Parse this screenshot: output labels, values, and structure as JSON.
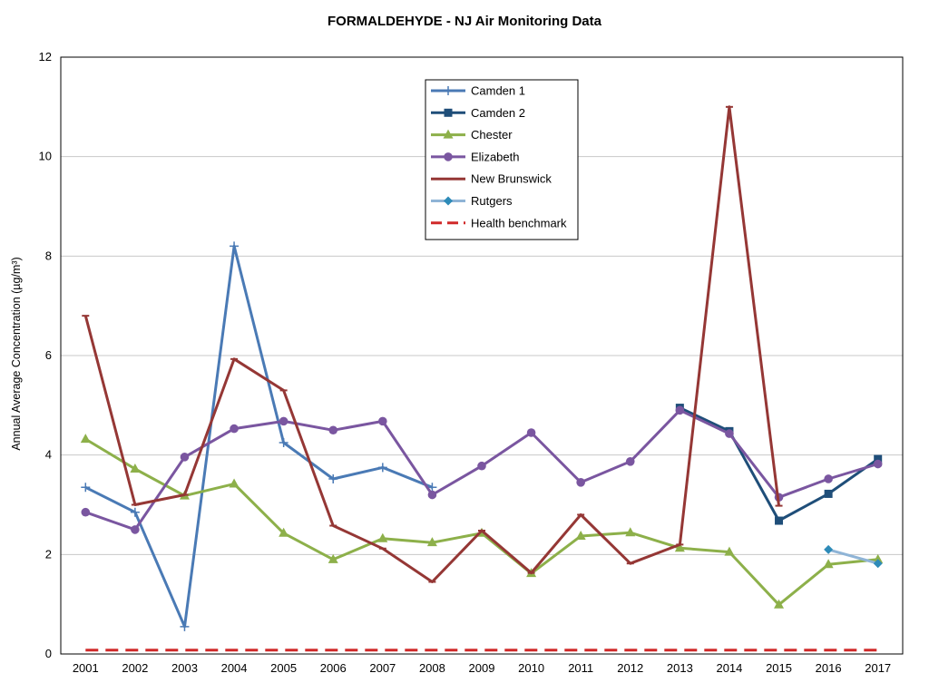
{
  "chart_data": {
    "type": "line",
    "title": "FORMALDEHYDE - NJ Air Monitoring Data",
    "xlabel": "",
    "ylabel": "Annual Average Concentration (µg/m³)",
    "ylim": [
      0,
      12
    ],
    "yticks": [
      0,
      2,
      4,
      6,
      8,
      10,
      12
    ],
    "categories": [
      "2001",
      "2002",
      "2003",
      "2004",
      "2005",
      "2006",
      "2007",
      "2008",
      "2009",
      "2010",
      "2011",
      "2012",
      "2013",
      "2014",
      "2015",
      "2016",
      "2017"
    ],
    "grid": true,
    "legend_position": "top-center",
    "series": [
      {
        "name": "Camden 1",
        "color": "#4a7ab5",
        "marker": "plus",
        "dash": false,
        "values": [
          3.35,
          2.85,
          0.55,
          8.2,
          4.25,
          3.52,
          3.75,
          3.35,
          null,
          null,
          null,
          null,
          null,
          null,
          null,
          null,
          null
        ]
      },
      {
        "name": "Camden 2",
        "color": "#1f4e79",
        "marker": "square",
        "dash": false,
        "values": [
          null,
          null,
          null,
          null,
          null,
          null,
          null,
          null,
          null,
          null,
          null,
          null,
          4.95,
          4.48,
          2.68,
          3.22,
          3.92
        ]
      },
      {
        "name": "Chester",
        "color": "#8db04a",
        "marker": "triangle",
        "dash": false,
        "values": [
          4.32,
          3.72,
          3.18,
          3.42,
          2.43,
          1.9,
          2.32,
          2.24,
          2.43,
          1.62,
          2.37,
          2.44,
          2.13,
          2.05,
          0.99,
          1.8,
          1.9
        ]
      },
      {
        "name": "Elizabeth",
        "color": "#7a56a0",
        "marker": "circle",
        "dash": false,
        "values": [
          2.85,
          2.5,
          3.96,
          4.53,
          4.68,
          4.5,
          4.68,
          3.2,
          3.78,
          4.45,
          3.45,
          3.87,
          4.9,
          4.43,
          3.15,
          3.52,
          3.82
        ]
      },
      {
        "name": "New Brunswick",
        "color": "#953735",
        "marker": "dash",
        "dash": false,
        "values": [
          6.8,
          3.0,
          3.2,
          5.93,
          5.3,
          2.58,
          2.12,
          1.45,
          2.48,
          1.63,
          2.8,
          1.82,
          2.2,
          11.0,
          2.98,
          null,
          null
        ]
      },
      {
        "name": "Rutgers",
        "color": "#8fb4d6",
        "marker": "diamond",
        "markerColor": "#2e8bb8",
        "dash": false,
        "values": [
          null,
          null,
          null,
          null,
          null,
          null,
          null,
          null,
          null,
          null,
          null,
          null,
          null,
          null,
          null,
          2.1,
          1.82
        ]
      },
      {
        "name": "Health benchmark",
        "color": "#d02a2a",
        "marker": "none",
        "dash": true,
        "values": [
          0.077,
          0.077,
          0.077,
          0.077,
          0.077,
          0.077,
          0.077,
          0.077,
          0.077,
          0.077,
          0.077,
          0.077,
          0.077,
          0.077,
          0.077,
          0.077,
          0.077
        ]
      }
    ]
  }
}
